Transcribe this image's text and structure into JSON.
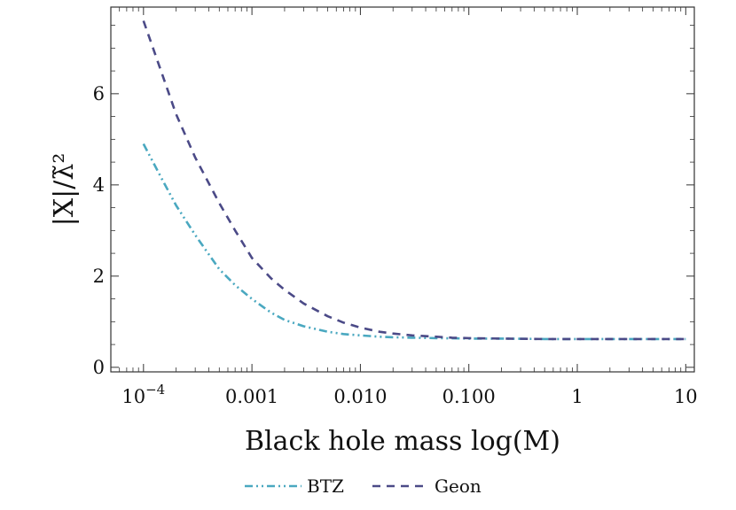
{
  "chart_data": {
    "type": "line",
    "xlabel": "Black hole mass   log(M)",
    "ylabel": "|X|/λ̃²",
    "x_scale": "log",
    "xlim": [
      5e-05,
      12
    ],
    "ylim": [
      -0.1,
      7.9
    ],
    "x_ticks": [
      {
        "value": 0.0001,
        "base": "10",
        "exp": "−4"
      },
      {
        "value": 0.001,
        "label": "0.001"
      },
      {
        "value": 0.01,
        "label": "0.010"
      },
      {
        "value": 0.1,
        "label": "0.100"
      },
      {
        "value": 1,
        "label": "1"
      },
      {
        "value": 10,
        "label": "10"
      }
    ],
    "y_ticks": [
      {
        "value": 0,
        "label": "0"
      },
      {
        "value": 2,
        "label": "2"
      },
      {
        "value": 4,
        "label": "4"
      },
      {
        "value": 6,
        "label": "6"
      }
    ],
    "legend": "bottom-center",
    "grid": false,
    "series": [
      {
        "name": "BTZ",
        "color": "#4aa8c0",
        "dash": "dashdotdot",
        "x": [
          0.0001,
          0.00015,
          0.0002,
          0.0003,
          0.0005,
          0.0007,
          0.001,
          0.0015,
          0.002,
          0.003,
          0.005,
          0.007,
          0.01,
          0.015,
          0.02,
          0.03,
          0.05,
          0.1,
          0.2,
          0.5,
          1,
          2,
          5,
          10
        ],
        "y": [
          4.9,
          4.1,
          3.55,
          2.9,
          2.15,
          1.8,
          1.5,
          1.2,
          1.04,
          0.9,
          0.78,
          0.73,
          0.7,
          0.67,
          0.66,
          0.65,
          0.64,
          0.63,
          0.63,
          0.62,
          0.62,
          0.62,
          0.62,
          0.62
        ]
      },
      {
        "name": "Geon",
        "color": "#4b4a87",
        "dash": "dashed",
        "x": [
          0.0001,
          0.00015,
          0.0002,
          0.0003,
          0.0005,
          0.0007,
          0.001,
          0.0015,
          0.002,
          0.003,
          0.005,
          0.007,
          0.01,
          0.015,
          0.02,
          0.03,
          0.05,
          0.07,
          0.1,
          0.2,
          0.5,
          1,
          2,
          5,
          10
        ],
        "y": [
          7.6,
          6.4,
          5.55,
          4.6,
          3.6,
          3.0,
          2.4,
          1.95,
          1.7,
          1.4,
          1.12,
          0.98,
          0.87,
          0.78,
          0.74,
          0.7,
          0.67,
          0.65,
          0.64,
          0.63,
          0.62,
          0.62,
          0.62,
          0.62,
          0.62
        ]
      }
    ]
  }
}
